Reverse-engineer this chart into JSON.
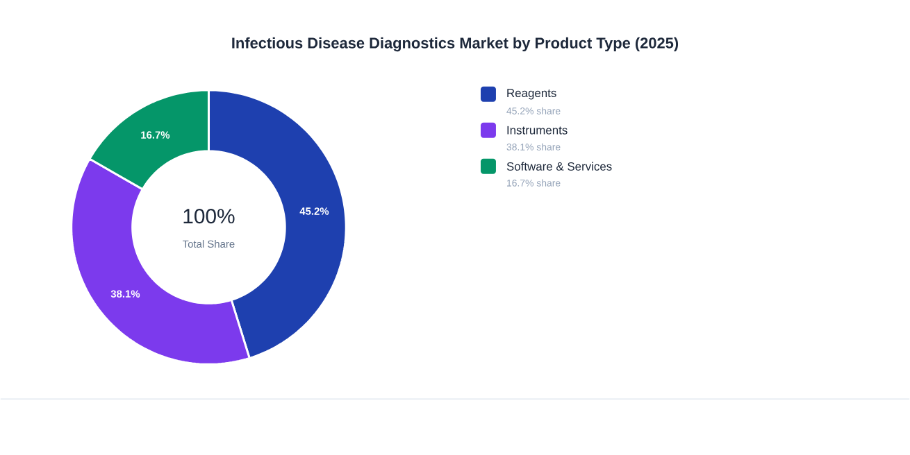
{
  "chart_data": {
    "type": "donut",
    "title": "Infectious Disease Diagnostics Market by Product Type (2025)",
    "categories": [
      "Reagents",
      "Instruments",
      "Software & Services"
    ],
    "values": [
      45.2,
      38.1,
      16.7
    ],
    "value_labels": [
      "45.2%",
      "38.1%",
      "16.7%"
    ],
    "colors": [
      "#1e40af",
      "#7c3aed",
      "#059669"
    ],
    "legend": "right",
    "annotations": [
      "100%",
      "Total Share",
      "45.2% share",
      "38.1% share",
      "16.7% share"
    ]
  }
}
